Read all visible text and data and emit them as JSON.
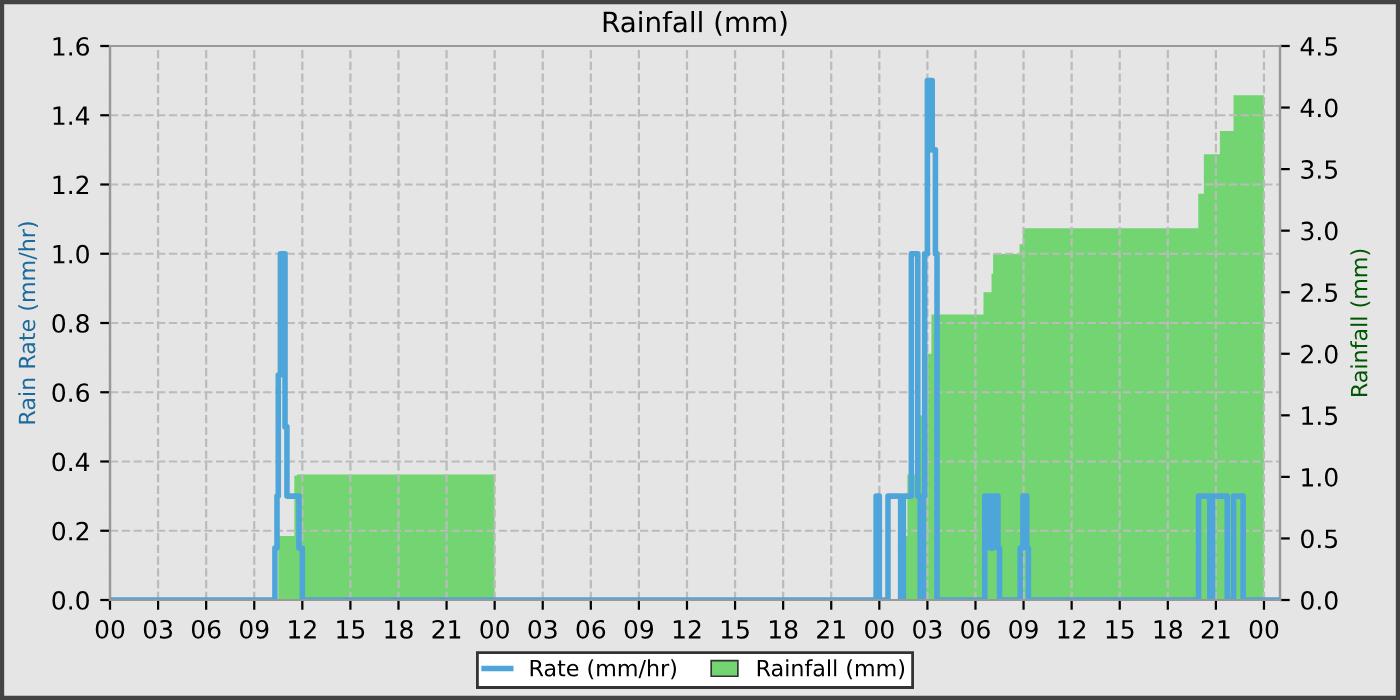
{
  "chart_data": {
    "type": "step",
    "title": "Rainfall (mm)",
    "ylabel": "Rain Rate (mm/hr)",
    "y2label": "Rainfall (mm)",
    "series": [
      {
        "name": "Rate (mm/hr)",
        "color": "#4ea5d9",
        "x": [
          0,
          10.29,
          10.42,
          10.5,
          10.63,
          10.92,
          11.04,
          11.79,
          12.0,
          47.8,
          48.0,
          48.54,
          49.33,
          49.5,
          50.0,
          50.4,
          50.55,
          50.75,
          50.83,
          51.0,
          51.3,
          51.5,
          51.6,
          54.58,
          54.92,
          55.1,
          55.4,
          55.5,
          56.79,
          56.96,
          57.2,
          57.3,
          67.92,
          68.62,
          68.79,
          69.29,
          69.71,
          70.1,
          70.7,
          73
        ],
        "values": [
          0,
          0.15,
          0.3,
          0.65,
          1.0,
          0.5,
          0.3,
          0.15,
          0,
          0.3,
          0,
          0.3,
          0,
          0.3,
          1.0,
          0.3,
          0,
          0.3,
          1.0,
          1.5,
          1.3,
          1.0,
          0,
          0.3,
          0.15,
          0.3,
          0.15,
          0,
          0.15,
          0.3,
          0.15,
          0,
          0.3,
          0,
          0.3,
          0.3,
          0,
          0.3,
          0,
          0
        ]
      },
      {
        "name": "Rainfall (mm)",
        "type": "area",
        "axis": "y2",
        "color": "#72d572",
        "x": [
          0,
          10.5,
          11.5,
          11.65,
          24,
          49.5,
          49.75,
          50.3,
          50.5,
          51.0,
          51.25,
          54.5,
          55.0,
          55.1,
          56.75,
          56.95,
          67.9,
          68.25,
          69.25,
          70.1,
          72
        ],
        "values": [
          0,
          0.52,
          1.01,
          1.02,
          0,
          0.52,
          1.02,
          1.31,
          1.5,
          2.0,
          2.32,
          2.5,
          2.65,
          2.81,
          2.89,
          3.02,
          3.3,
          3.62,
          3.81,
          4.1,
          0
        ]
      }
    ],
    "xlim": [
      0,
      73
    ],
    "xticks": [
      {
        "value": 0,
        "label": "00"
      },
      {
        "value": 3,
        "label": "03"
      },
      {
        "value": 6,
        "label": "06"
      },
      {
        "value": 9,
        "label": "09"
      },
      {
        "value": 12,
        "label": "12"
      },
      {
        "value": 15,
        "label": "15"
      },
      {
        "value": 18,
        "label": "18"
      },
      {
        "value": 21,
        "label": "21"
      },
      {
        "value": 24,
        "label": "00"
      },
      {
        "value": 27,
        "label": "03"
      },
      {
        "value": 30,
        "label": "06"
      },
      {
        "value": 33,
        "label": "09"
      },
      {
        "value": 36,
        "label": "12"
      },
      {
        "value": 39,
        "label": "15"
      },
      {
        "value": 42,
        "label": "18"
      },
      {
        "value": 45,
        "label": "21"
      },
      {
        "value": 48,
        "label": "00"
      },
      {
        "value": 51,
        "label": "03"
      },
      {
        "value": 54,
        "label": "06"
      },
      {
        "value": 57,
        "label": "09"
      },
      {
        "value": 60,
        "label": "12"
      },
      {
        "value": 63,
        "label": "15"
      },
      {
        "value": 66,
        "label": "18"
      },
      {
        "value": 69,
        "label": "21"
      },
      {
        "value": 72,
        "label": "00"
      }
    ],
    "ylim": [
      0,
      1.6
    ],
    "yticks": [
      {
        "value": 0,
        "label": "0.0"
      },
      {
        "value": 0.2,
        "label": "0.2"
      },
      {
        "value": 0.4,
        "label": "0.4"
      },
      {
        "value": 0.6,
        "label": "0.6"
      },
      {
        "value": 0.8,
        "label": "0.8"
      },
      {
        "value": 1.0,
        "label": "1.0"
      },
      {
        "value": 1.2,
        "label": "1.2"
      },
      {
        "value": 1.4,
        "label": "1.4"
      },
      {
        "value": 1.6,
        "label": "1.6"
      }
    ],
    "y2lim": [
      0,
      4.5
    ],
    "y2ticks": [
      {
        "value": 0,
        "label": "0.0"
      },
      {
        "value": 0.5,
        "label": "0.5"
      },
      {
        "value": 1.0,
        "label": "1.0"
      },
      {
        "value": 1.5,
        "label": "1.5"
      },
      {
        "value": 2.0,
        "label": "2.0"
      },
      {
        "value": 2.5,
        "label": "2.5"
      },
      {
        "value": 3.0,
        "label": "3.0"
      },
      {
        "value": 3.5,
        "label": "3.5"
      },
      {
        "value": 4.0,
        "label": "4.0"
      },
      {
        "value": 4.5,
        "label": "4.5"
      }
    ],
    "grid": true,
    "legend": "bottom"
  }
}
